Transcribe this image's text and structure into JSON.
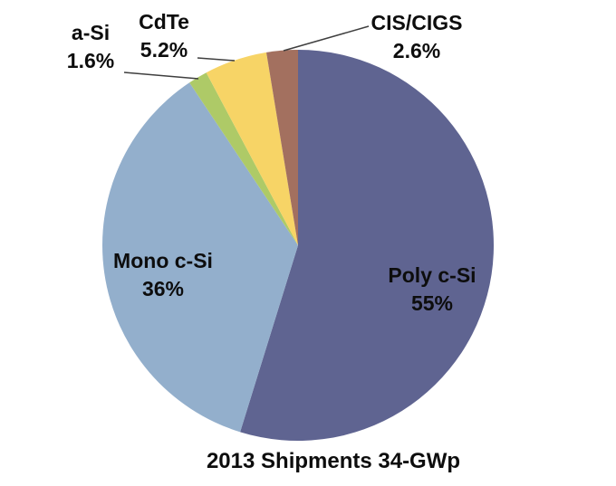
{
  "chart_data": {
    "type": "pie",
    "title": "2013 Shipments 34-GWp",
    "start_angle_deg": 0,
    "direction": "clockwise",
    "legend_position": "none",
    "grid": false,
    "background_color": "#ffffff",
    "leader_line_color": "#3f3f3f",
    "slices": [
      {
        "label": "Poly c-Si",
        "value": 55,
        "value_label": "55%",
        "color": "#5F6491",
        "label_placement": "inside"
      },
      {
        "label": "Mono c-Si",
        "value": 36,
        "value_label": "36%",
        "color": "#93AFCC",
        "label_placement": "inside"
      },
      {
        "label": "a-Si",
        "value": 1.6,
        "value_label": "1.6%",
        "color": "#AECA67",
        "label_placement": "outside"
      },
      {
        "label": "CdTe",
        "value": 5.2,
        "value_label": "5.2%",
        "color": "#F7D466",
        "label_placement": "outside"
      },
      {
        "label": "CIS/CIGS",
        "value": 2.6,
        "value_label": "2.6%",
        "color": "#A3705F",
        "label_placement": "outside"
      }
    ]
  }
}
